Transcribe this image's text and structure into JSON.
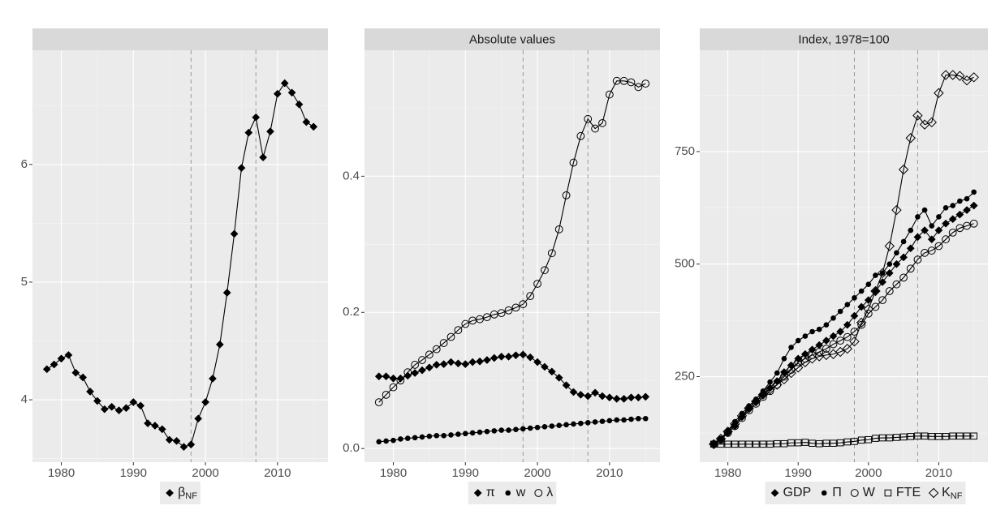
{
  "chart_data": [
    {
      "type": "line",
      "title": "",
      "xlabel": "",
      "ylabel": "",
      "xlim": [
        1976,
        2017
      ],
      "ylim": [
        3.47,
        6.97
      ],
      "x_ticks": [
        1980,
        1990,
        2000,
        2010
      ],
      "y_ticks": [
        4,
        5,
        6
      ],
      "vlines": [
        1998,
        2007
      ],
      "legend_position": "bottom",
      "grid": true,
      "series": [
        {
          "name": "βNF",
          "marker": "filled-diamond",
          "x": [
            1978,
            1979,
            1980,
            1981,
            1982,
            1983,
            1984,
            1985,
            1986,
            1987,
            1988,
            1989,
            1990,
            1991,
            1992,
            1993,
            1994,
            1995,
            1996,
            1997,
            1998,
            1999,
            2000,
            2001,
            2002,
            2003,
            2004,
            2005,
            2006,
            2007,
            2008,
            2009,
            2010,
            2011,
            2012,
            2013,
            2014,
            2015
          ],
          "values": [
            4.26,
            4.3,
            4.35,
            4.38,
            4.23,
            4.19,
            4.07,
            3.99,
            3.92,
            3.94,
            3.91,
            3.93,
            3.98,
            3.95,
            3.8,
            3.78,
            3.75,
            3.66,
            3.65,
            3.6,
            3.62,
            3.84,
            3.98,
            4.18,
            4.47,
            4.91,
            5.41,
            5.97,
            6.27,
            6.4,
            6.06,
            6.28,
            6.6,
            6.69,
            6.61,
            6.51,
            6.36,
            6.32
          ]
        }
      ]
    },
    {
      "type": "line",
      "title": "Absolute values",
      "xlabel": "",
      "ylabel": "",
      "xlim": [
        1976,
        2017
      ],
      "ylim": [
        -0.02,
        0.585
      ],
      "x_ticks": [
        1980,
        1990,
        2000,
        2010
      ],
      "y_ticks": [
        0.0,
        0.2,
        0.4
      ],
      "y_tick_labels": [
        "0.0",
        "0.2",
        "0.4"
      ],
      "vlines": [
        1998,
        2007
      ],
      "legend_position": "bottom",
      "grid": true,
      "x": [
        1978,
        1979,
        1980,
        1981,
        1982,
        1983,
        1984,
        1985,
        1986,
        1987,
        1988,
        1989,
        1990,
        1991,
        1992,
        1993,
        1994,
        1995,
        1996,
        1997,
        1998,
        1999,
        2000,
        2001,
        2002,
        2003,
        2004,
        2005,
        2006,
        2007,
        2008,
        2009,
        2010,
        2011,
        2012,
        2013,
        2014,
        2015
      ],
      "series": [
        {
          "name": "π",
          "marker": "filled-diamond",
          "values": [
            0.106,
            0.106,
            0.103,
            0.103,
            0.107,
            0.111,
            0.115,
            0.119,
            0.123,
            0.124,
            0.127,
            0.125,
            0.124,
            0.127,
            0.128,
            0.13,
            0.133,
            0.135,
            0.135,
            0.137,
            0.138,
            0.134,
            0.127,
            0.12,
            0.113,
            0.104,
            0.093,
            0.083,
            0.079,
            0.077,
            0.082,
            0.077,
            0.075,
            0.073,
            0.073,
            0.075,
            0.075,
            0.076
          ]
        },
        {
          "name": "w",
          "marker": "filled-circle",
          "values": [
            0.01,
            0.011,
            0.012,
            0.014,
            0.015,
            0.016,
            0.017,
            0.018,
            0.019,
            0.019,
            0.02,
            0.021,
            0.022,
            0.023,
            0.024,
            0.025,
            0.026,
            0.027,
            0.027,
            0.028,
            0.029,
            0.03,
            0.031,
            0.032,
            0.033,
            0.034,
            0.035,
            0.036,
            0.037,
            0.038,
            0.039,
            0.04,
            0.041,
            0.042,
            0.042,
            0.043,
            0.044,
            0.044
          ]
        },
        {
          "name": "λ",
          "marker": "open-circle",
          "values": [
            0.068,
            0.079,
            0.09,
            0.1,
            0.112,
            0.123,
            0.13,
            0.138,
            0.146,
            0.155,
            0.164,
            0.174,
            0.183,
            0.188,
            0.19,
            0.193,
            0.197,
            0.199,
            0.203,
            0.207,
            0.212,
            0.224,
            0.242,
            0.262,
            0.287,
            0.322,
            0.372,
            0.42,
            0.459,
            0.484,
            0.47,
            0.478,
            0.52,
            0.54,
            0.54,
            0.538,
            0.531,
            0.536
          ]
        }
      ]
    },
    {
      "type": "line",
      "title": "Index, 1978=100",
      "xlabel": "",
      "ylabel": "",
      "xlim": [
        1976,
        2017
      ],
      "ylim": [
        60,
        975
      ],
      "x_ticks": [
        1980,
        1990,
        2000,
        2010
      ],
      "y_ticks": [
        250,
        500,
        750
      ],
      "vlines": [
        1998,
        2007
      ],
      "legend_position": "bottom",
      "grid": true,
      "x": [
        1978,
        1979,
        1980,
        1981,
        1982,
        1983,
        1984,
        1985,
        1986,
        1987,
        1988,
        1989,
        1990,
        1991,
        1992,
        1993,
        1994,
        1995,
        1996,
        1997,
        1998,
        1999,
        2000,
        2001,
        2002,
        2003,
        2004,
        2005,
        2006,
        2007,
        2008,
        2009,
        2010,
        2011,
        2012,
        2013,
        2014,
        2015
      ],
      "series": [
        {
          "name": "GDP",
          "marker": "filled-diamond",
          "values": [
            100,
            110,
            125,
            140,
            160,
            180,
            195,
            210,
            225,
            240,
            260,
            275,
            290,
            300,
            310,
            320,
            330,
            340,
            350,
            365,
            385,
            405,
            420,
            440,
            460,
            480,
            500,
            515,
            535,
            560,
            575,
            555,
            575,
            590,
            600,
            610,
            620,
            630
          ]
        },
        {
          "name": "Π",
          "marker": "filled-circle",
          "values": [
            100,
            112,
            130,
            150,
            168,
            185,
            200,
            218,
            238,
            258,
            290,
            315,
            330,
            340,
            350,
            355,
            365,
            380,
            395,
            410,
            425,
            440,
            455,
            475,
            480,
            500,
            525,
            550,
            575,
            605,
            620,
            585,
            605,
            625,
            630,
            640,
            645,
            660
          ]
        },
        {
          "name": "W",
          "marker": "open-circle",
          "values": [
            100,
            110,
            125,
            140,
            158,
            175,
            190,
            205,
            218,
            232,
            250,
            265,
            282,
            290,
            298,
            305,
            312,
            322,
            330,
            338,
            350,
            365,
            390,
            405,
            420,
            440,
            455,
            470,
            490,
            510,
            525,
            530,
            540,
            555,
            570,
            580,
            585,
            590
          ]
        },
        {
          "name": "FTE",
          "marker": "open-square",
          "values": [
            100,
            100,
            100,
            100,
            100,
            100,
            100,
            100,
            100,
            101,
            101,
            103,
            103,
            104,
            102,
            101,
            102,
            102,
            103,
            105,
            106,
            109,
            110,
            113,
            114,
            114,
            115,
            116,
            117,
            118,
            118,
            117,
            117,
            117,
            118,
            118,
            118,
            118
          ]
        },
        {
          "name": "KNF",
          "marker": "open-diamond",
          "values": [
            100,
            112,
            128,
            145,
            163,
            180,
            195,
            210,
            222,
            232,
            244,
            258,
            270,
            282,
            290,
            295,
            298,
            300,
            305,
            312,
            328,
            370,
            400,
            440,
            480,
            540,
            620,
            710,
            780,
            830,
            810,
            815,
            880,
            920,
            920,
            918,
            908,
            915
          ]
        }
      ]
    }
  ]
}
